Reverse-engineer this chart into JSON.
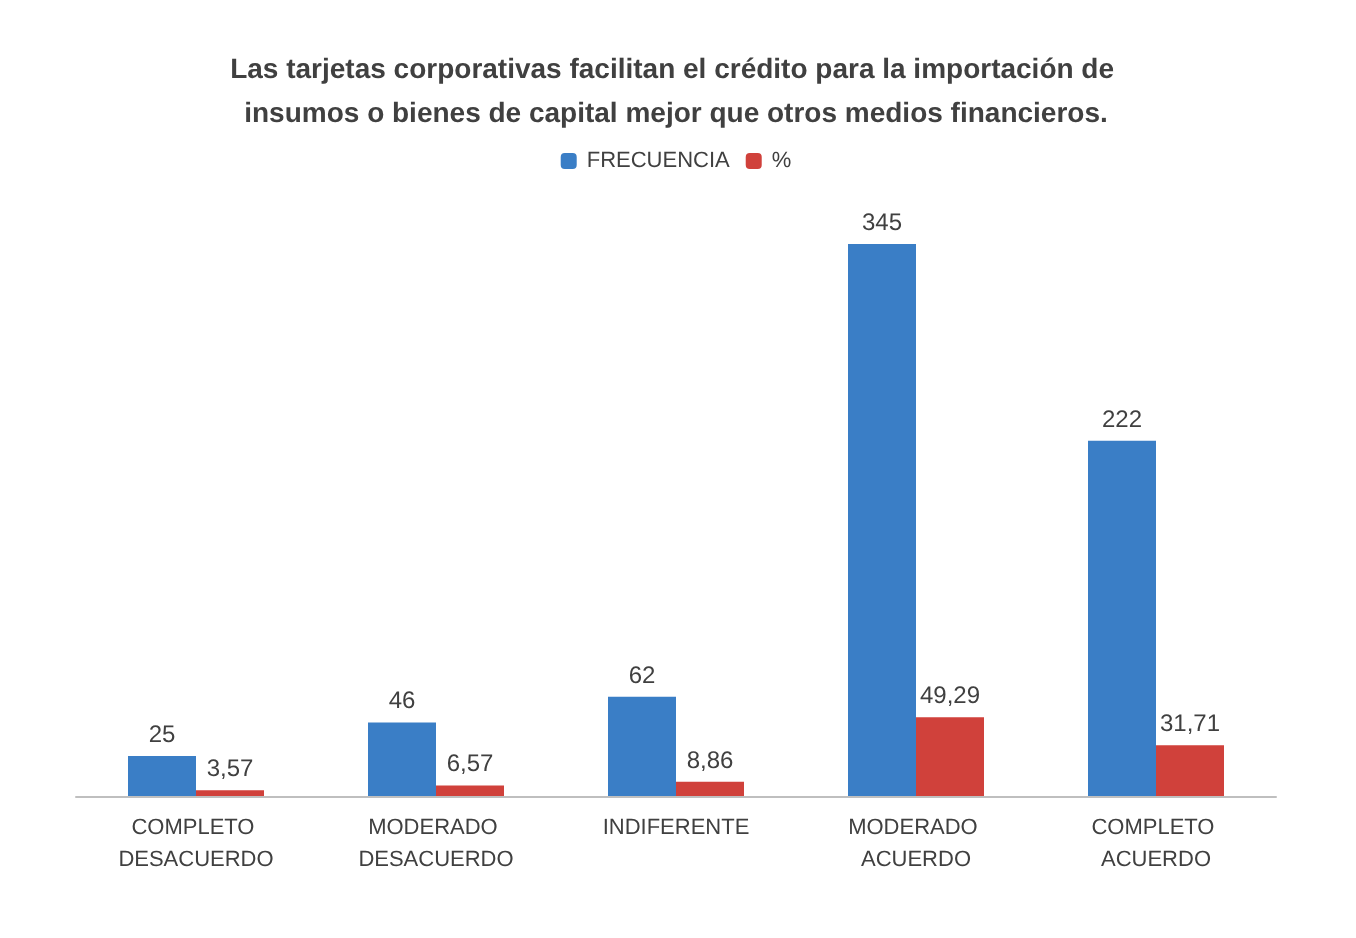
{
  "chart_data": {
    "type": "bar",
    "title": "Las tarjetas corporativas facilitan el crédito para la importación de insumos o bienes de capital mejor que otros medios financieros.",
    "categories": [
      "COMPLETO DESACUERDO",
      "MODERADO DESACUERDO",
      "INDIFERENTE",
      "MODERADO ACUERDO",
      "COMPLETO ACUERDO"
    ],
    "series": [
      {
        "name": "FRECUENCIA",
        "color": "#3a7ec6",
        "values": [
          25,
          46,
          62,
          345,
          222
        ],
        "value_labels": [
          "25",
          "46",
          "62",
          "345",
          "222"
        ]
      },
      {
        "name": "%",
        "color": "#d0413b",
        "values": [
          3.57,
          6.57,
          8.86,
          49.29,
          31.71
        ],
        "value_labels": [
          "3,57",
          "6,57",
          "8,86",
          "49,29",
          "31,71"
        ]
      }
    ],
    "legend": "top"
  }
}
